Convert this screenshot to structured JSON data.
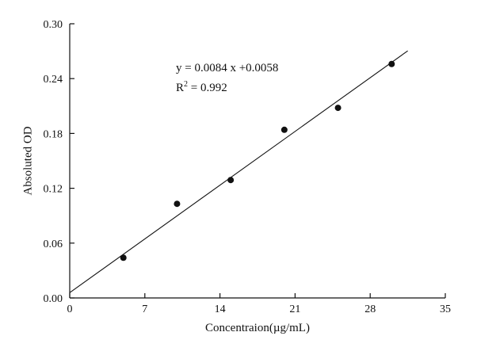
{
  "chart_data": {
    "type": "scatter",
    "title": "",
    "xlabel": "Concentraion(µg/mL)",
    "ylabel": "Absoluted OD",
    "xlim": [
      0,
      35
    ],
    "ylim": [
      0,
      0.3
    ],
    "xticks": [
      0,
      7,
      14,
      21,
      28,
      35
    ],
    "xtick_labels": [
      "0",
      "7",
      "14",
      "21",
      "28",
      "35"
    ],
    "yticks": [
      0,
      0.06,
      0.12,
      0.18,
      0.24,
      0.3
    ],
    "ytick_labels": [
      "0.00",
      "0.06",
      "0.12",
      "0.18",
      "0.24",
      "0.30"
    ],
    "points": [
      {
        "x": 5,
        "y": 0.044
      },
      {
        "x": 10,
        "y": 0.103
      },
      {
        "x": 15,
        "y": 0.129
      },
      {
        "x": 20,
        "y": 0.184
      },
      {
        "x": 25,
        "y": 0.208
      },
      {
        "x": 30,
        "y": 0.256
      }
    ],
    "fit_line": {
      "slope": 0.0084,
      "intercept": 0.0058,
      "x_start": 0,
      "x_end": 31.5
    },
    "annotation": {
      "equation": "y = 0.0084 x +0.0058",
      "r_base": "R",
      "r_sup": "2",
      "r_rest": " = 0.992"
    },
    "grid": false,
    "legend": "none",
    "marker_color": "#111111",
    "line_color": "#111111",
    "axis_color": "#111111"
  }
}
